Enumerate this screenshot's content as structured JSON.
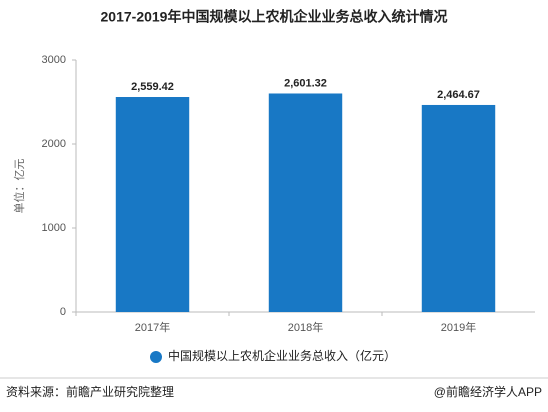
{
  "chart_data": {
    "type": "bar",
    "title": "2017-2019年中国规模以上农机企业业务总收入统计情况",
    "y_label": "单位：亿元",
    "categories": [
      "2017年",
      "2018年",
      "2019年"
    ],
    "series": [
      {
        "name": "中国规模以上农机企业业务总收入（亿元）",
        "color": "#1878c5",
        "values": [
          2559.42,
          2601.32,
          2464.67
        ],
        "value_labels": [
          "2,559.42",
          "2,601.32",
          "2,464.67"
        ]
      }
    ],
    "ylim": [
      0,
      3000
    ],
    "yticks": [
      0,
      1000,
      2000,
      3000
    ],
    "grid": false,
    "legend": "bottom",
    "source": "资料来源：前瞻产业研究院整理",
    "credit": "@前瞻经济学人APP"
  }
}
